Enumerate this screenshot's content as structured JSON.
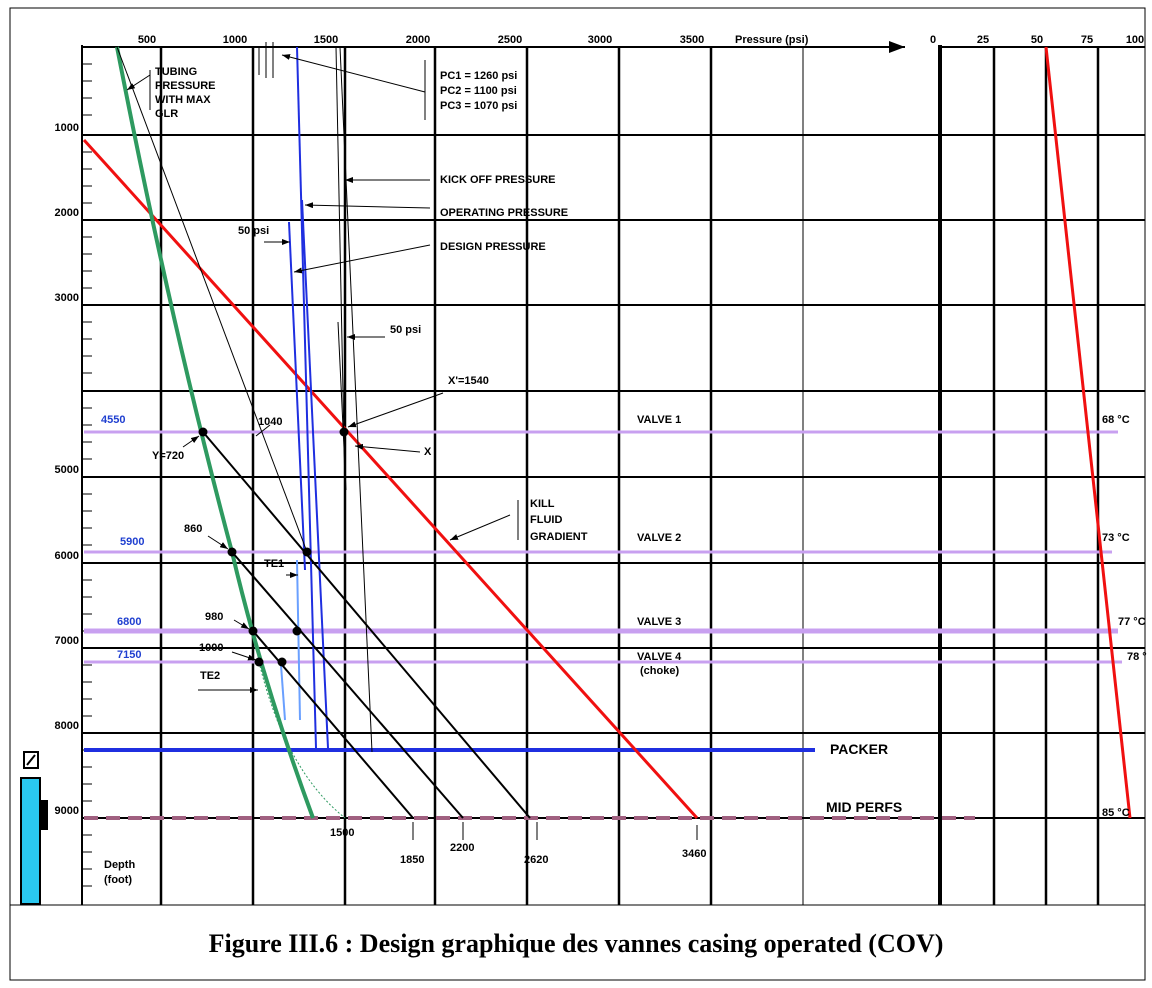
{
  "axes": {
    "pressure_ticks": [
      "500",
      "1000",
      "1500",
      "2000",
      "2500",
      "3000",
      "3500"
    ],
    "pressure_title": "Pressure (psi)",
    "temperature_ticks": [
      "0",
      "25",
      "50",
      "75",
      "100"
    ],
    "depth_ticks": [
      "1000",
      "2000",
      "3000",
      "5000",
      "6000",
      "7000",
      "8000",
      "9000"
    ],
    "depth_title": [
      "Depth",
      "(foot)"
    ]
  },
  "annotations": {
    "tubing": [
      "TUBING",
      "PRESSURE",
      "WITH MAX",
      "GLR"
    ],
    "pc": [
      "PC1 = 1260 psi",
      "PC2 = 1100 psi",
      "PC3 = 1070 psi"
    ],
    "kick_off": "KICK OFF PRESSURE",
    "operating": "OPERATING  PRESSURE",
    "design": "DESIGN PRESSURE",
    "delta_top": "50 psi",
    "delta_mid": "50 psi",
    "x_prime": "X'=1540",
    "x": "X",
    "p1040": "1040",
    "y720": "Y=720",
    "kill": [
      "KILL",
      "FLUID",
      "GRADIENT"
    ],
    "p860": "860",
    "p980": "980",
    "p1000": "1000",
    "te1": "TE1",
    "te2": "TE2",
    "packer": "PACKER",
    "mid_perfs": "MID PERFS",
    "bottom": [
      "1500",
      "1850",
      "2200",
      "2620",
      "3460"
    ]
  },
  "valves": [
    {
      "depth": "4550",
      "label": "VALVE 1",
      "temp": "68 °C"
    },
    {
      "depth": "5900",
      "label": "VALVE 2",
      "temp": "73 °C"
    },
    {
      "depth": "6800",
      "label": "VALVE 3",
      "temp": "77 °C"
    },
    {
      "depth": "7150",
      "label": "VALVE 4",
      "note": "(choke)",
      "temp": "78 °"
    }
  ],
  "bottom_temp": "85 °C",
  "caption": "Figure III.6 : Design graphique des vannes casing operated (COV)"
}
